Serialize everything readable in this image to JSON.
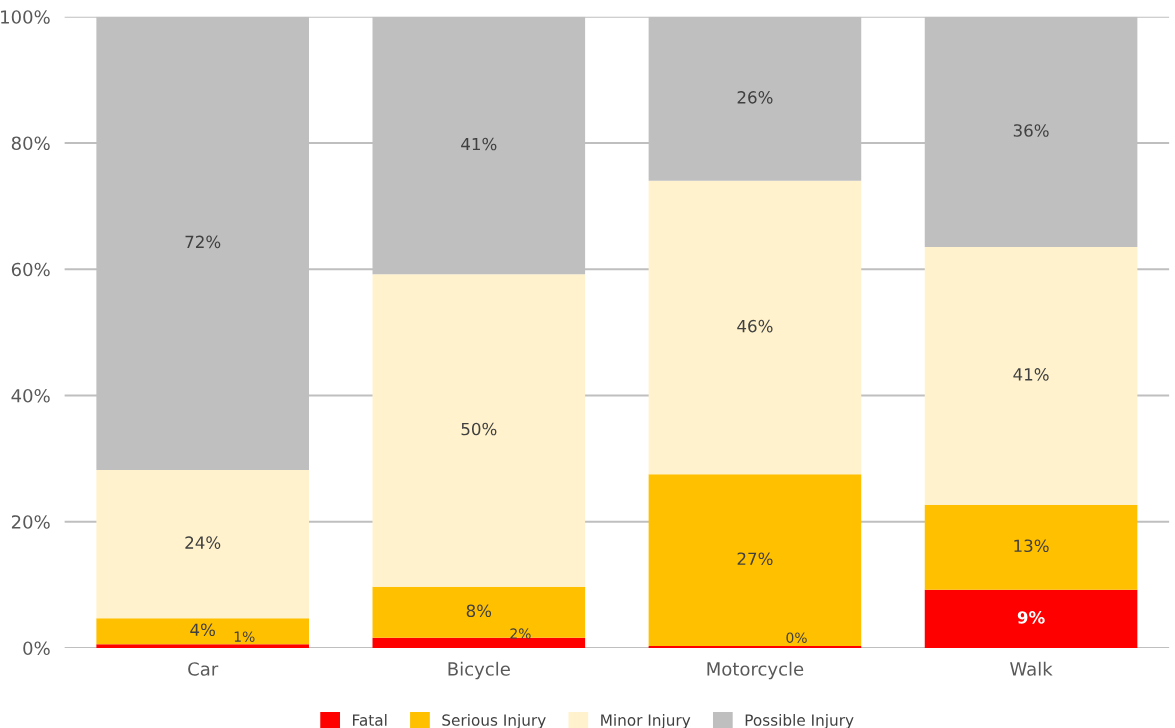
{
  "chart_data": {
    "type": "bar",
    "stacked": true,
    "categories": [
      "Car",
      "Bicycle",
      "Motorcycle",
      "Walk"
    ],
    "series": [
      {
        "name": "Fatal",
        "color": "#ff0000",
        "values": [
          0.6,
          1.6,
          0.3,
          9.2
        ],
        "value_labels": [
          "1%",
          "2%",
          "0%",
          "9%"
        ]
      },
      {
        "name": "Serious Injury",
        "color": "#ffc000",
        "values": [
          4.1,
          8.1,
          27.2,
          13.5
        ],
        "value_labels": [
          "4%",
          "8%",
          "27%",
          "13%"
        ]
      },
      {
        "name": "Minor Injury",
        "color": "#fff2cc",
        "values": [
          23.5,
          49.5,
          46.5,
          40.8
        ],
        "value_labels": [
          "24%",
          "50%",
          "46%",
          "41%"
        ]
      },
      {
        "name": "Possible Injury",
        "color": "#bfbfbf",
        "values": [
          71.8,
          40.8,
          26.0,
          36.5
        ],
        "value_labels": [
          "72%",
          "41%",
          "26%",
          "36%"
        ]
      }
    ],
    "ylim": [
      0,
      100
    ],
    "yticks": [
      {
        "value": 0,
        "label": "0%"
      },
      {
        "value": 20,
        "label": "20%"
      },
      {
        "value": 40,
        "label": "40%"
      },
      {
        "value": 60,
        "label": "60%"
      },
      {
        "value": 80,
        "label": "80%"
      },
      {
        "value": 100,
        "label": "100%"
      }
    ],
    "grid": "y",
    "legend": "bottom"
  }
}
